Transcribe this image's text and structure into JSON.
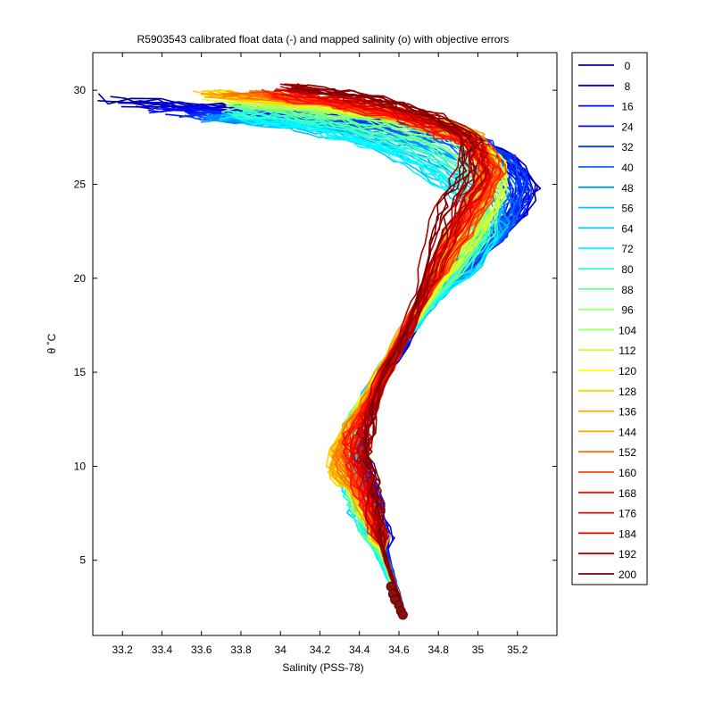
{
  "chart_data": {
    "type": "line",
    "title": "R5903543 calibrated float data (-) and mapped salinity (o) with objective errors",
    "xlabel": "Salinity (PSS-78)",
    "ylabel": "θ ˚C",
    "xlim": [
      33.05,
      35.4
    ],
    "ylim": [
      1,
      32
    ],
    "x_ticks": [
      33.2,
      33.4,
      33.6,
      33.8,
      34,
      34.2,
      34.4,
      34.6,
      34.8,
      35,
      35.2
    ],
    "x_tick_labels": [
      "33.2",
      "33.4",
      "33.6",
      "33.8",
      "34",
      "34.2",
      "34.4",
      "34.6",
      "34.8",
      "35",
      "35.2"
    ],
    "y_ticks": [
      5,
      10,
      15,
      20,
      25,
      30
    ],
    "y_tick_labels": [
      "5",
      "10",
      "15",
      "20",
      "25",
      "30"
    ],
    "grid": false,
    "legend_position": "outside-right",
    "legend": [
      "0",
      "8",
      "16",
      "24",
      "32",
      "40",
      "48",
      "56",
      "64",
      "72",
      "80",
      "88",
      "96",
      "104",
      "112",
      "120",
      "128",
      "136",
      "144",
      "152",
      "160",
      "168",
      "176",
      "184",
      "192",
      "200"
    ],
    "legend_colors": [
      "#00009f",
      "#0000cf",
      "#0008ff",
      "#0038ff",
      "#0068ff",
      "#0098ff",
      "#00c8ff",
      "#08f8ff",
      "#38ffc8",
      "#68ff98",
      "#98ff68",
      "#c8ff38",
      "#f8ff08",
      "#ffd000",
      "#ffa000",
      "#ff7000",
      "#ff4000",
      "#ff1000",
      "#df0000",
      "#af0000",
      "#800000"
    ],
    "representative_profiles": [
      {
        "profile": 0,
        "color": "#00008f",
        "points": [
          [
            33.1,
            29.6
          ],
          [
            33.5,
            29.3
          ],
          [
            33.95,
            28.9
          ],
          [
            34.4,
            28.5
          ],
          [
            34.8,
            28.0
          ],
          [
            35.1,
            27.0
          ],
          [
            35.28,
            25.2
          ],
          [
            35.2,
            23.5
          ],
          [
            35.0,
            21.5
          ],
          [
            34.8,
            19.5
          ],
          [
            34.62,
            16.5
          ],
          [
            34.45,
            13.5
          ],
          [
            34.38,
            11.5
          ],
          [
            34.45,
            9.5
          ],
          [
            34.5,
            7.5
          ],
          [
            34.55,
            5.0
          ],
          [
            34.58,
            3.5
          ],
          [
            34.62,
            2.1
          ]
        ]
      },
      {
        "profile": 40,
        "color": "#0060ff",
        "points": [
          [
            33.6,
            28.5
          ],
          [
            34.0,
            28.4
          ],
          [
            34.5,
            28.2
          ],
          [
            34.9,
            27.6
          ],
          [
            35.15,
            26.5
          ],
          [
            35.22,
            24.8
          ],
          [
            35.15,
            23.0
          ],
          [
            34.95,
            21.0
          ],
          [
            34.75,
            18.8
          ],
          [
            34.6,
            16.5
          ],
          [
            34.45,
            13.8
          ],
          [
            34.38,
            11.2
          ],
          [
            34.42,
            9.2
          ],
          [
            34.48,
            7.2
          ],
          [
            34.55,
            5.0
          ],
          [
            34.6,
            3.2
          ],
          [
            34.62,
            2.2
          ]
        ]
      },
      {
        "profile": 72,
        "color": "#20e0ff",
        "points": [
          [
            33.75,
            28.6
          ],
          [
            34.0,
            28.2
          ],
          [
            34.3,
            27.5
          ],
          [
            34.55,
            26.5
          ],
          [
            34.75,
            25.3
          ],
          [
            34.95,
            24.0
          ],
          [
            35.05,
            22.5
          ],
          [
            34.95,
            20.5
          ],
          [
            34.75,
            18.5
          ],
          [
            34.6,
            16.5
          ],
          [
            34.42,
            13.5
          ],
          [
            34.34,
            11.0
          ],
          [
            34.35,
            8.5
          ],
          [
            34.42,
            6.8
          ],
          [
            34.5,
            5.0
          ],
          [
            34.58,
            3.3
          ],
          [
            34.62,
            2.2
          ]
        ]
      },
      {
        "profile": 104,
        "color": "#a8ff58",
        "points": [
          [
            33.8,
            29.4
          ],
          [
            34.2,
            29.0
          ],
          [
            34.6,
            28.4
          ],
          [
            34.95,
            27.4
          ],
          [
            35.12,
            26.0
          ],
          [
            35.12,
            24.2
          ],
          [
            35.0,
            22.0
          ],
          [
            34.82,
            19.8
          ],
          [
            34.66,
            17.5
          ],
          [
            34.5,
            14.8
          ],
          [
            34.35,
            12.0
          ],
          [
            34.3,
            10.2
          ],
          [
            34.38,
            8.5
          ],
          [
            34.46,
            6.5
          ],
          [
            34.54,
            4.8
          ],
          [
            34.6,
            3.0
          ],
          [
            34.62,
            2.2
          ]
        ]
      },
      {
        "profile": 128,
        "color": "#ffd000",
        "points": [
          [
            33.6,
            29.9
          ],
          [
            34.0,
            29.6
          ],
          [
            34.4,
            29.2
          ],
          [
            34.8,
            28.5
          ],
          [
            35.0,
            27.4
          ],
          [
            35.05,
            25.8
          ],
          [
            34.95,
            23.5
          ],
          [
            34.82,
            21.0
          ],
          [
            34.7,
            18.5
          ],
          [
            34.55,
            15.8
          ],
          [
            34.4,
            13.0
          ],
          [
            34.28,
            10.8
          ],
          [
            34.26,
            9.6
          ],
          [
            34.4,
            8.5
          ],
          [
            34.5,
            6.5
          ],
          [
            34.55,
            4.5
          ],
          [
            34.6,
            3.0
          ],
          [
            34.62,
            2.2
          ]
        ]
      },
      {
        "profile": 160,
        "color": "#ff5000",
        "points": [
          [
            34.0,
            29.8
          ],
          [
            34.35,
            29.2
          ],
          [
            34.7,
            28.3
          ],
          [
            35.0,
            27.0
          ],
          [
            35.1,
            25.4
          ],
          [
            34.98,
            23.4
          ],
          [
            34.82,
            21.0
          ],
          [
            34.7,
            18.5
          ],
          [
            34.58,
            16.0
          ],
          [
            34.45,
            13.2
          ],
          [
            34.35,
            11.2
          ],
          [
            34.38,
            9.6
          ],
          [
            34.46,
            7.5
          ],
          [
            34.52,
            5.5
          ],
          [
            34.58,
            3.6
          ],
          [
            34.62,
            2.2
          ]
        ]
      },
      {
        "profile": 200,
        "color": "#900000",
        "points": [
          [
            34.05,
            30.3
          ],
          [
            34.4,
            29.8
          ],
          [
            34.75,
            28.9
          ],
          [
            34.95,
            27.5
          ],
          [
            34.92,
            25.8
          ],
          [
            34.82,
            24.0
          ],
          [
            34.75,
            21.5
          ],
          [
            34.7,
            19.0
          ],
          [
            34.62,
            16.8
          ],
          [
            34.5,
            14.5
          ],
          [
            34.44,
            12.0
          ],
          [
            34.46,
            10.0
          ],
          [
            34.5,
            8.0
          ],
          [
            34.5,
            6.2
          ],
          [
            34.55,
            4.5
          ],
          [
            34.6,
            3.0
          ],
          [
            34.62,
            2.1
          ]
        ]
      }
    ],
    "mapped_salinity_markers": [
      [
        34.56,
        3.6
      ],
      [
        34.57,
        3.2
      ],
      [
        34.58,
        2.9
      ],
      [
        34.6,
        2.6
      ],
      [
        34.61,
        2.3
      ],
      [
        34.62,
        2.1
      ]
    ]
  }
}
